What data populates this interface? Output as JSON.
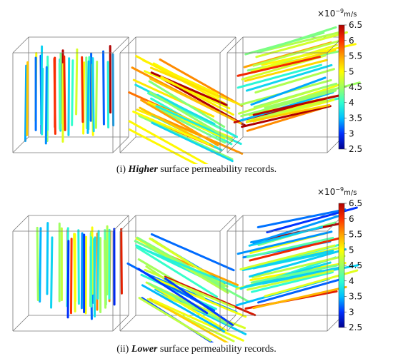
{
  "colorbar": {
    "multiplier": "×10",
    "exponent": "−9",
    "unit": "m/s",
    "ticks": [
      "6.5",
      "6",
      "5.5",
      "5",
      "4.5",
      "4",
      "3.5",
      "3",
      "2.5"
    ],
    "min": 2.5,
    "max": 6.5,
    "colormap": [
      "#00008f",
      "#0030ff",
      "#00c0ff",
      "#30ffd0",
      "#a0ff60",
      "#ffff00",
      "#ffa000",
      "#ff3000",
      "#b00000"
    ]
  },
  "panels": [
    {
      "id": "a",
      "caption_prefix": "(i)",
      "caption_emph": "Higher",
      "caption_rest": "surface permeability records."
    },
    {
      "id": "b",
      "caption_prefix": "(ii)",
      "caption_emph": "Lower",
      "caption_rest": "surface permeability records."
    }
  ]
}
